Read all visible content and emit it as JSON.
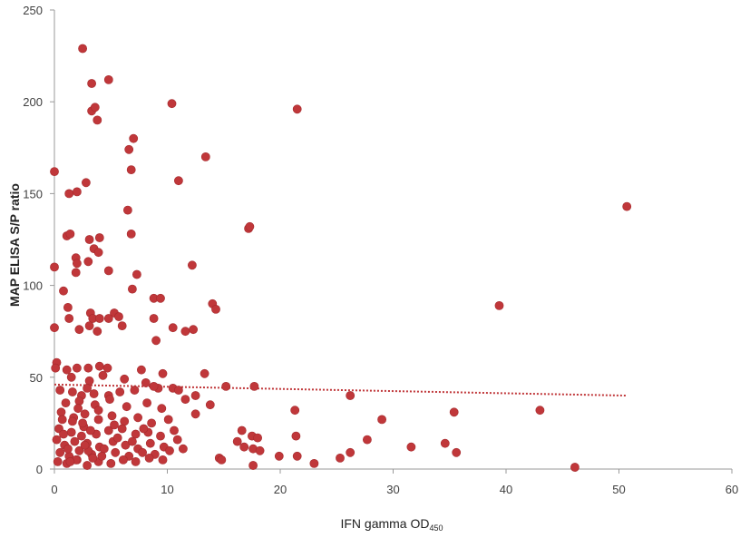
{
  "chart_data": {
    "type": "scatter",
    "xlabel": "IFN gamma OD",
    "xlabel_subscript": "450",
    "ylabel": "MAP ELISA S/P ratio",
    "xlim": [
      0,
      60
    ],
    "ylim": [
      0,
      250
    ],
    "xticks": [
      "0",
      "10",
      "20",
      "30",
      "40",
      "50",
      "60"
    ],
    "yticks": [
      "0",
      "50",
      "100",
      "150",
      "200",
      "250"
    ],
    "grid": false,
    "legend": "none",
    "point_color": "#c0373a",
    "trendline": {
      "style": "dotted",
      "color": "#c0373a",
      "x": [
        0,
        50.7
      ],
      "y": [
        46,
        40
      ]
    },
    "points": [
      [
        2.5,
        229
      ],
      [
        3.3,
        210
      ],
      [
        4.8,
        212
      ],
      [
        3.3,
        195
      ],
      [
        3.6,
        197
      ],
      [
        3.8,
        190
      ],
      [
        10.4,
        199
      ],
      [
        21.5,
        196
      ],
      [
        0,
        162
      ],
      [
        7,
        180
      ],
      [
        6.6,
        174
      ],
      [
        6.8,
        163
      ],
      [
        13.4,
        170
      ],
      [
        2.8,
        156
      ],
      [
        1.3,
        150
      ],
      [
        2,
        151
      ],
      [
        11,
        157
      ],
      [
        50.7,
        143
      ],
      [
        6.5,
        141
      ],
      [
        17.2,
        131
      ],
      [
        17.3,
        132
      ],
      [
        1.1,
        127
      ],
      [
        1.4,
        128
      ],
      [
        3.1,
        125
      ],
      [
        4,
        126
      ],
      [
        6.8,
        128
      ],
      [
        3.5,
        120
      ],
      [
        3.9,
        118
      ],
      [
        1.9,
        115
      ],
      [
        2,
        112
      ],
      [
        3,
        113
      ],
      [
        12.2,
        111
      ],
      [
        0,
        110
      ],
      [
        1.9,
        107
      ],
      [
        4.8,
        108
      ],
      [
        7.3,
        106
      ],
      [
        0.8,
        97
      ],
      [
        6.9,
        98
      ],
      [
        8.8,
        93
      ],
      [
        9.4,
        93
      ],
      [
        39.4,
        89
      ],
      [
        14,
        90
      ],
      [
        14.3,
        87
      ],
      [
        1.2,
        88
      ],
      [
        5.3,
        85
      ],
      [
        3.2,
        85
      ],
      [
        3.4,
        82
      ],
      [
        4,
        82
      ],
      [
        4.8,
        82
      ],
      [
        5.7,
        83
      ],
      [
        1.3,
        82
      ],
      [
        8.8,
        82
      ],
      [
        10.5,
        77
      ],
      [
        11.6,
        75
      ],
      [
        12.3,
        76
      ],
      [
        3.1,
        78
      ],
      [
        3.8,
        75
      ],
      [
        2.2,
        76
      ],
      [
        6,
        78
      ],
      [
        0,
        77
      ],
      [
        9,
        70
      ],
      [
        0.2,
        58
      ],
      [
        0.1,
        55
      ],
      [
        1.1,
        54
      ],
      [
        2,
        55
      ],
      [
        3,
        55
      ],
      [
        4,
        56
      ],
      [
        4.7,
        55
      ],
      [
        9.6,
        52
      ],
      [
        7.7,
        54
      ],
      [
        13.3,
        52
      ],
      [
        8.1,
        47
      ],
      [
        15.2,
        45
      ],
      [
        17.7,
        45
      ],
      [
        10.5,
        44
      ],
      [
        9.2,
        44
      ],
      [
        1.5,
        50
      ],
      [
        3.1,
        48
      ],
      [
        4.3,
        51
      ],
      [
        6.2,
        49
      ],
      [
        0.5,
        43
      ],
      [
        1.6,
        42
      ],
      [
        2.4,
        40
      ],
      [
        3.5,
        41
      ],
      [
        4.8,
        40
      ],
      [
        5.8,
        42
      ],
      [
        7.1,
        43
      ],
      [
        8.8,
        45
      ],
      [
        11,
        43
      ],
      [
        12.5,
        40
      ],
      [
        13.8,
        35
      ],
      [
        26.2,
        40
      ],
      [
        1,
        36
      ],
      [
        2.2,
        37
      ],
      [
        3.6,
        35
      ],
      [
        4.9,
        38
      ],
      [
        6.4,
        34
      ],
      [
        8.2,
        36
      ],
      [
        9.5,
        33
      ],
      [
        11.6,
        38
      ],
      [
        12.5,
        30
      ],
      [
        21.3,
        32
      ],
      [
        35.4,
        31
      ],
      [
        43,
        32
      ],
      [
        0.6,
        31
      ],
      [
        1.7,
        28
      ],
      [
        2.7,
        30
      ],
      [
        3.9,
        27
      ],
      [
        5.1,
        29
      ],
      [
        6.2,
        26
      ],
      [
        7.4,
        28
      ],
      [
        8.6,
        25
      ],
      [
        10.1,
        27
      ],
      [
        29,
        27
      ],
      [
        0.4,
        22
      ],
      [
        1.5,
        20
      ],
      [
        2.6,
        23
      ],
      [
        3.7,
        19
      ],
      [
        4.8,
        21
      ],
      [
        6,
        22
      ],
      [
        7.2,
        19
      ],
      [
        8.3,
        20
      ],
      [
        9.4,
        18
      ],
      [
        10.6,
        21
      ],
      [
        16.6,
        21
      ],
      [
        17.5,
        18
      ],
      [
        18,
        17
      ],
      [
        21.4,
        18
      ],
      [
        27.7,
        16
      ],
      [
        0.2,
        16
      ],
      [
        0.9,
        13
      ],
      [
        1.8,
        15
      ],
      [
        2.9,
        14
      ],
      [
        4,
        12
      ],
      [
        5.2,
        15
      ],
      [
        6.3,
        13
      ],
      [
        7.4,
        11
      ],
      [
        8.5,
        14
      ],
      [
        9.7,
        12
      ],
      [
        10.9,
        16
      ],
      [
        16.2,
        15
      ],
      [
        16.8,
        12
      ],
      [
        17.6,
        11
      ],
      [
        31.6,
        12
      ],
      [
        34.6,
        14
      ],
      [
        35.6,
        9
      ],
      [
        0.5,
        9
      ],
      [
        1.3,
        7
      ],
      [
        2.2,
        10
      ],
      [
        3.3,
        8
      ],
      [
        4.4,
        11
      ],
      [
        5.4,
        9
      ],
      [
        6.6,
        7
      ],
      [
        7.8,
        9
      ],
      [
        8.9,
        8
      ],
      [
        10.2,
        10
      ],
      [
        11.4,
        11
      ],
      [
        14.6,
        6
      ],
      [
        14.8,
        5
      ],
      [
        18.2,
        10
      ],
      [
        19.9,
        7
      ],
      [
        21.5,
        7
      ],
      [
        25.3,
        6
      ],
      [
        26.2,
        9
      ],
      [
        0.3,
        4
      ],
      [
        1.1,
        3
      ],
      [
        2,
        5
      ],
      [
        2.9,
        2
      ],
      [
        3.9,
        4
      ],
      [
        5,
        3
      ],
      [
        6.1,
        5
      ],
      [
        7.2,
        4
      ],
      [
        8.4,
        6
      ],
      [
        9.6,
        5
      ],
      [
        17.6,
        2
      ],
      [
        23,
        3
      ],
      [
        46.1,
        1
      ],
      [
        1.6,
        26
      ],
      [
        2.4,
        18
      ],
      [
        3,
        10
      ],
      [
        2.1,
        33
      ],
      [
        0.8,
        19
      ],
      [
        1.2,
        11
      ],
      [
        1.9,
        5
      ],
      [
        2.7,
        13
      ],
      [
        3.4,
        6
      ],
      [
        2.5,
        25
      ],
      [
        1.4,
        4
      ],
      [
        3.2,
        21
      ],
      [
        4.2,
        7
      ],
      [
        5.6,
        17
      ],
      [
        6.9,
        15
      ],
      [
        0.7,
        27
      ],
      [
        2.9,
        44
      ],
      [
        3.9,
        32
      ],
      [
        5.3,
        24
      ],
      [
        7.9,
        22
      ]
    ]
  }
}
